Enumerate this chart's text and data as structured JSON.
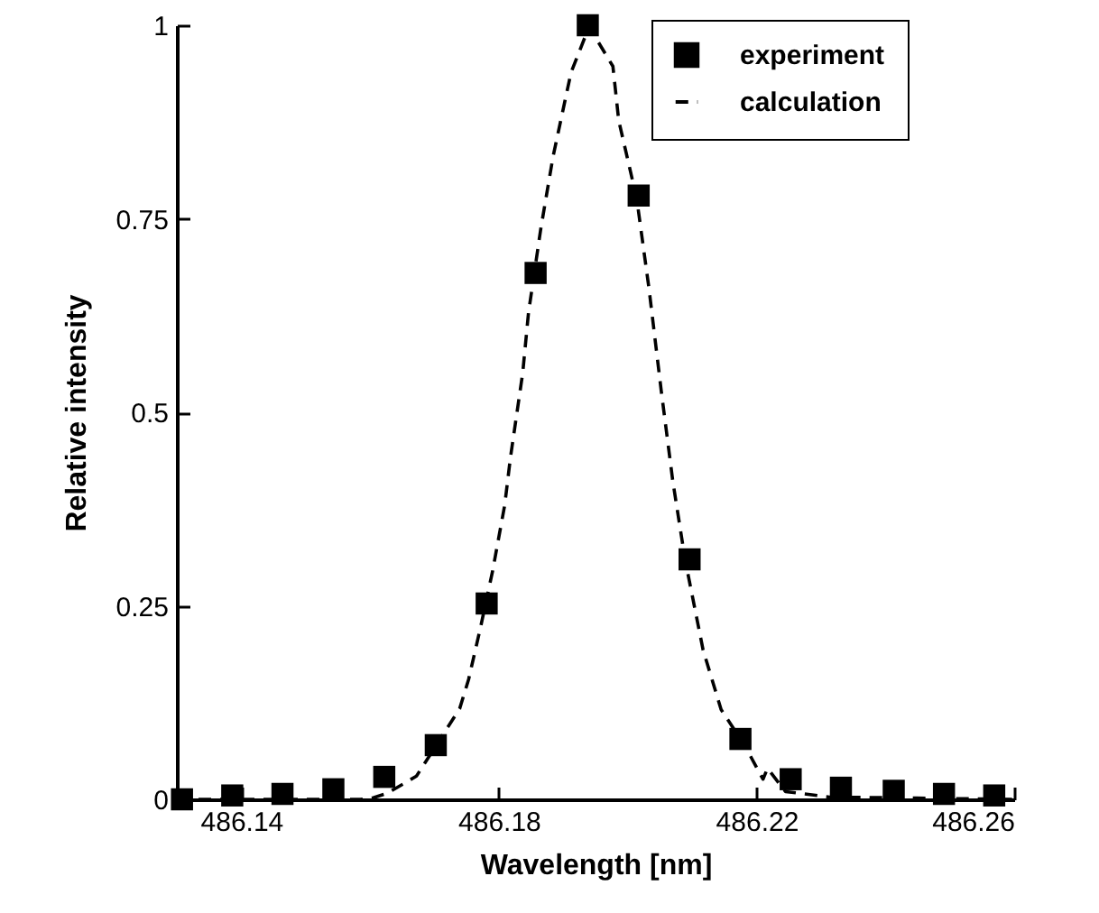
{
  "chart_data": {
    "type": "scatter",
    "xlabel": "Wavelength [nm]",
    "ylabel": "Relative intensity",
    "xlim": [
      486.13,
      486.26
    ],
    "xticks": [
      486.14,
      486.18,
      486.22,
      486.26
    ],
    "ylim": [
      0,
      1
    ],
    "yticks": [
      0,
      0.25,
      0.5,
      0.75,
      1
    ],
    "grid": false,
    "legend": "top right",
    "series": [
      {
        "name": "experiment",
        "marker": "square",
        "color": "#000000",
        "x": [
          486.1308,
          486.1386,
          486.1464,
          486.1543,
          486.1622,
          486.1702,
          486.1781,
          486.1857,
          486.1938,
          486.2017,
          486.2096,
          486.2175,
          486.2253,
          486.2331,
          486.2413,
          486.2491,
          486.2569
        ],
        "values": [
          0,
          0.005,
          0.007,
          0.013,
          0.029,
          0.07,
          0.253,
          0.68,
          1,
          0.78,
          0.31,
          0.078,
          0.026,
          0.015,
          0.011,
          0.007,
          0.005
        ]
      },
      {
        "name": "calculation",
        "type": "line",
        "line_style": "dashed",
        "color": "#000000",
        "x": [
          486.13,
          486.1585,
          486.1605,
          486.1627,
          486.1672,
          486.1739,
          486.1753,
          486.1772,
          486.179,
          486.1809,
          486.1818,
          486.1837,
          486.1846,
          486.1865,
          486.1884,
          486.1912,
          486.194,
          486.1977,
          486.1986,
          486.2014,
          486.2033,
          486.2052,
          486.207,
          486.2089,
          486.2117,
          486.2145,
          486.2182,
          486.221,
          486.2217,
          486.2245,
          486.2313,
          486.26
        ],
        "values": [
          0,
          0,
          0.002,
          0.008,
          0.03,
          0.117,
          0.155,
          0.224,
          0.294,
          0.38,
          0.442,
          0.551,
          0.629,
          0.737,
          0.83,
          0.939,
          0.998,
          0.947,
          0.877,
          0.776,
          0.66,
          0.528,
          0.411,
          0.31,
          0.193,
          0.116,
          0.069,
          0.026,
          0.04,
          0.01,
          0.003,
          0
        ]
      }
    ]
  }
}
